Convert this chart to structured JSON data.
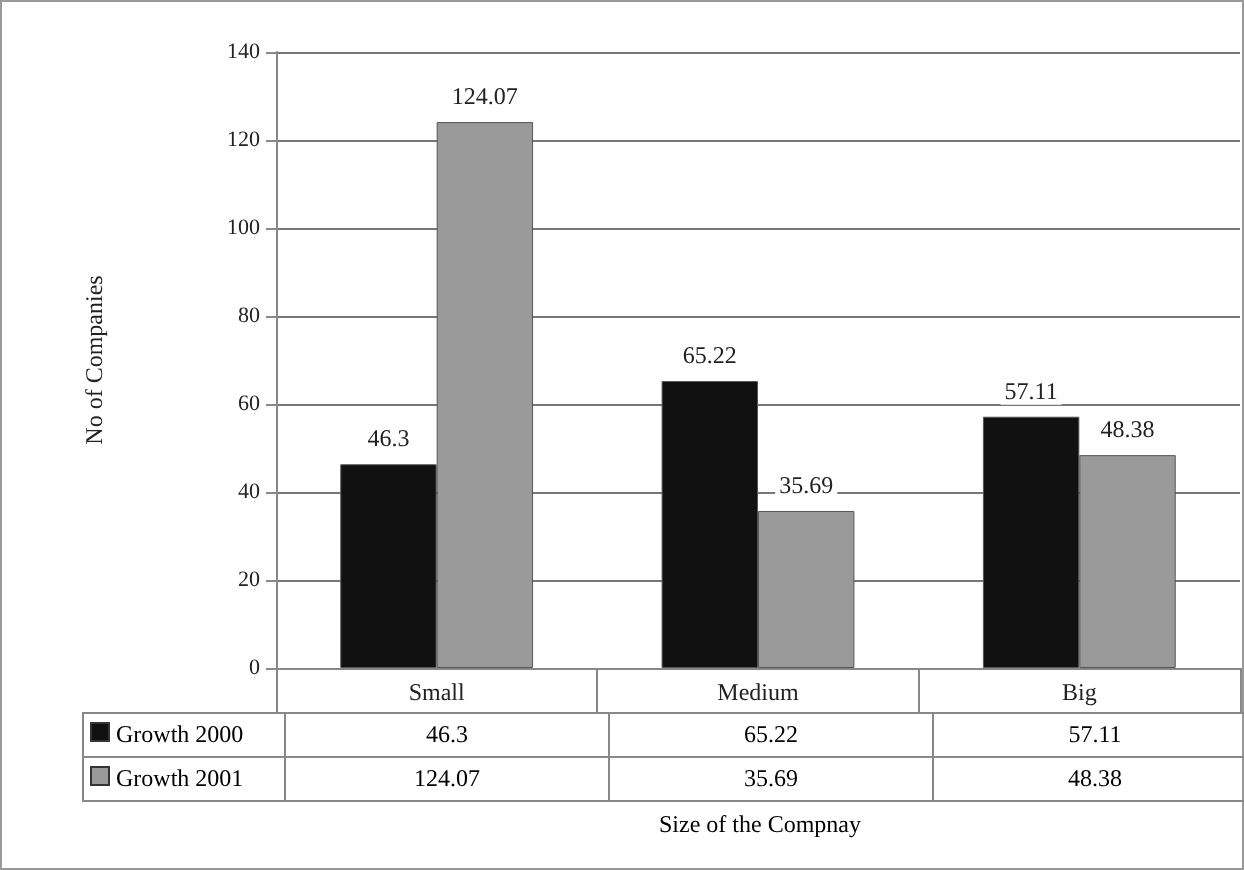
{
  "chart_data": {
    "type": "bar",
    "categories": [
      "Small",
      "Medium",
      "Big"
    ],
    "series": [
      {
        "name": "Growth 2000",
        "color": "#111111",
        "values": [
          46.3,
          65.22,
          57.11
        ],
        "value_labels": [
          "46.3",
          "65.22",
          "57.11"
        ]
      },
      {
        "name": "Growth 2001",
        "color": "#9a9a9a",
        "values": [
          124.07,
          35.69,
          48.38
        ],
        "value_labels": [
          "124.07",
          "35.69",
          "48.38"
        ]
      }
    ],
    "xlabel": "Size of the Compnay",
    "ylabel": "No of Companies",
    "ylim": [
      0,
      140
    ],
    "yticks": [
      0,
      20,
      40,
      60,
      80,
      100,
      120,
      140
    ],
    "annotations": [
      "46.3",
      "65.22",
      "57.11",
      "124.07",
      "35.69",
      "48.38"
    ],
    "grid": "y",
    "legend": "bottom"
  }
}
